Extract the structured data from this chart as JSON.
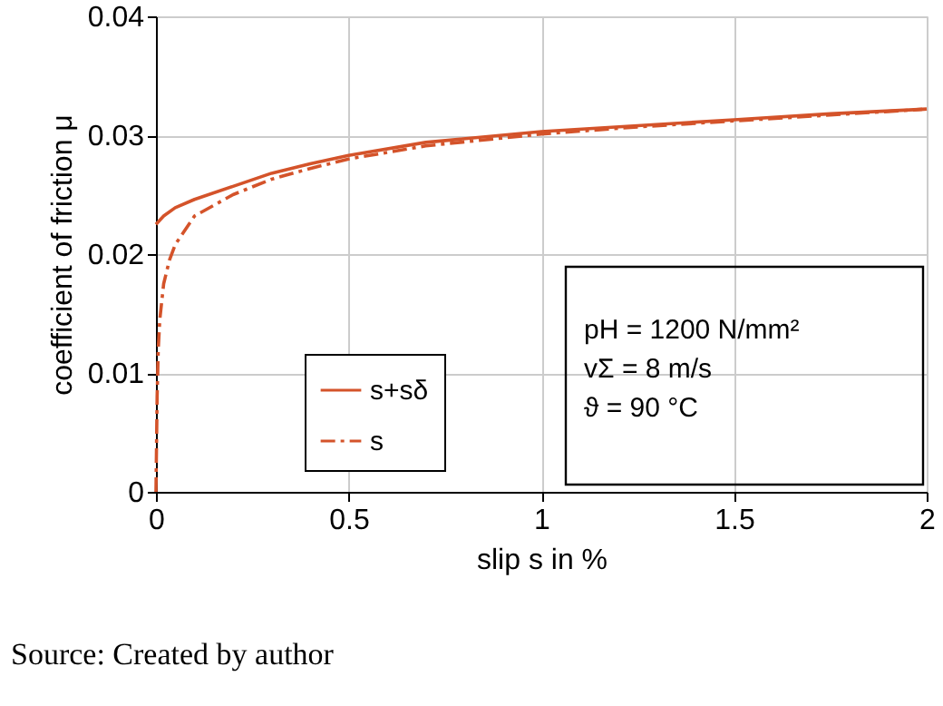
{
  "chart_data": {
    "type": "line",
    "xlabel": "slip s in %",
    "ylabel": "coefficient of friction μ",
    "xlim": [
      0,
      2
    ],
    "xticks": [
      0,
      0.5,
      1,
      1.5,
      2
    ],
    "ylim": [
      0,
      0.04
    ],
    "yticks": [
      0,
      0.01,
      0.02,
      0.03,
      0.04
    ],
    "grid": true,
    "legend": "bottom",
    "marker": "none",
    "series": [
      {
        "name": "s+sδ",
        "color": "#d4532a",
        "line_style": "solid",
        "x": [
          0,
          0.02,
          0.05,
          0.1,
          0.2,
          0.3,
          0.4,
          0.5,
          0.7,
          1,
          1.25,
          1.5,
          1.75,
          2
        ],
        "values": [
          0.0225,
          0.0232,
          0.0239,
          0.0246,
          0.0257,
          0.0268,
          0.0276,
          0.0283,
          0.0294,
          0.0303,
          0.0308,
          0.0313,
          0.0318,
          0.0322
        ]
      },
      {
        "name": "s",
        "color": "#d4532a",
        "line_style": "dashed",
        "x": [
          0,
          0.003,
          0.006,
          0.01,
          0.02,
          0.035,
          0.05,
          0.1,
          0.2,
          0.3,
          0.4,
          0.5,
          0.7,
          1,
          1.25,
          1.5,
          1.75,
          2
        ],
        "values": [
          0,
          0.008,
          0.012,
          0.0145,
          0.0175,
          0.0195,
          0.0208,
          0.0232,
          0.025,
          0.0263,
          0.0272,
          0.028,
          0.0291,
          0.0301,
          0.0307,
          0.0312,
          0.0317,
          0.0322
        ]
      }
    ],
    "annotations": [
      "pH = 1200 N/mm²",
      "vΣ = 8 m/s",
      "ϑ = 90 °C",
      "Source: Created by author"
    ]
  }
}
